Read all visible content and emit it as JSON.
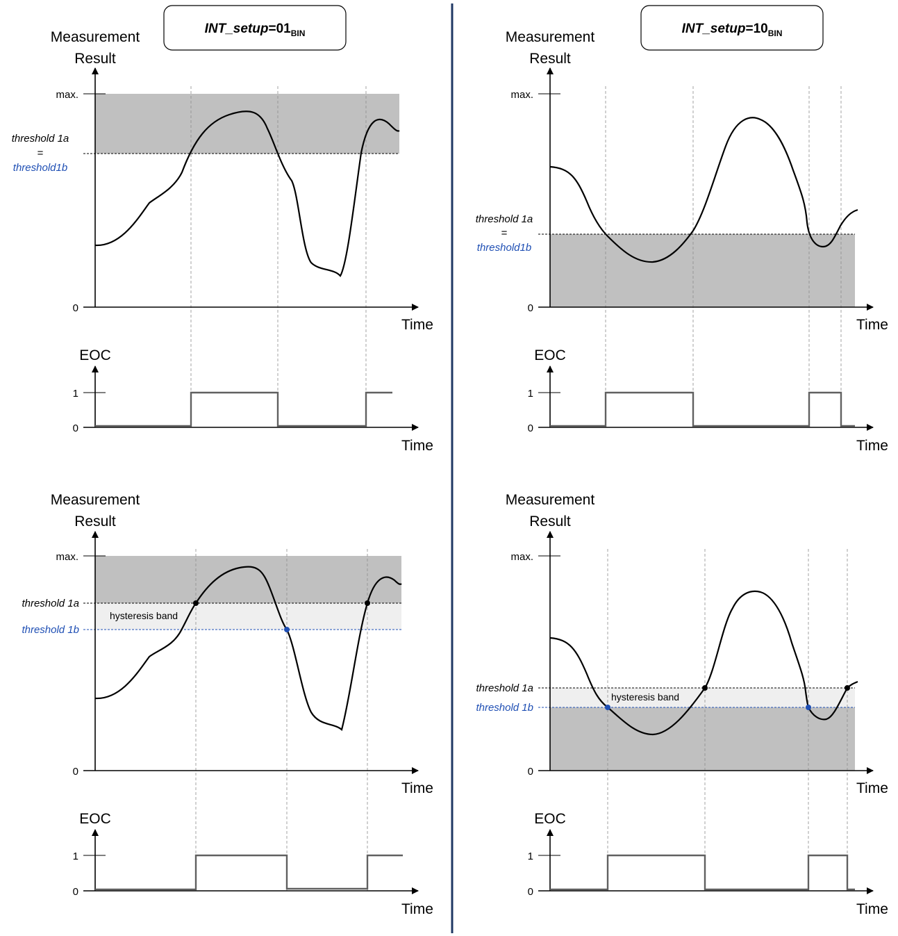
{
  "colors": {
    "region": "#c0c0c0",
    "hysteresis_band": "#efefef",
    "threshold_b": "#1f4fb4",
    "divider": "#1f3864",
    "eoc_line": "#606060",
    "guide": "#8c8c8c",
    "curve": "#000000"
  },
  "labels": {
    "y_axis_line1": "Measurement",
    "y_axis_line2": "Result",
    "time": "Time",
    "eoc": "EOC",
    "max": "max.",
    "zero": "0",
    "one": "1",
    "threshold_1a": "threshold 1a",
    "equals": "=",
    "threshold1b": "threshold1b",
    "threshold_1b": "threshold 1b",
    "hysteresis_band": "hysteresis band"
  },
  "modes": {
    "left": {
      "name": "INT_setup",
      "eq": "=",
      "value": "01",
      "subscript": "BIN"
    },
    "right": {
      "name": "INT_setup",
      "eq": "=",
      "value": "10",
      "subscript": "BIN"
    }
  }
}
